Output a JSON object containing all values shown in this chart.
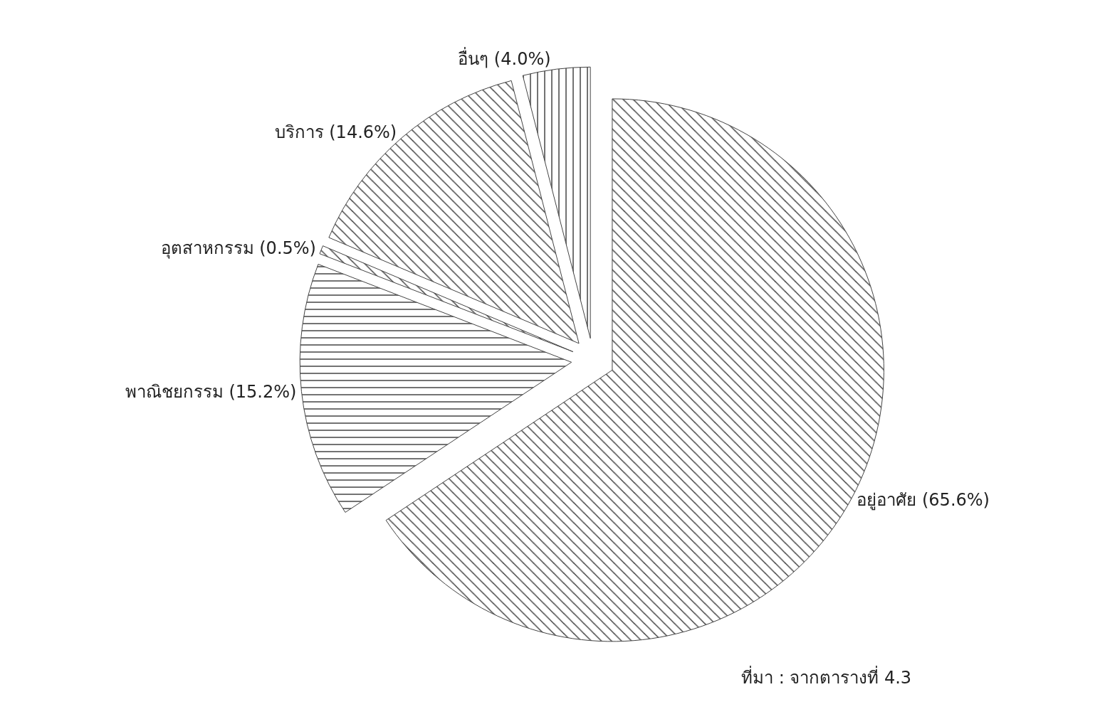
{
  "chart_data": {
    "type": "pie",
    "categories": [
      "อยู่อาศัย",
      "พาณิชยกรรม",
      "อุตสาหกรรม",
      "บริการ",
      "อื่นๆ"
    ],
    "values": [
      65.6,
      15.2,
      0.5,
      14.6,
      4.0
    ],
    "value_labels": [
      "(65.6%)",
      "(15.2%)",
      "(0.5%)",
      "(14.6%)",
      "(4.0%)"
    ],
    "colors": [
      "#444444",
      "#444444",
      "#444444",
      "#444444",
      "#444444"
    ],
    "annotations": [
      "ที่มา : จากตารางที่ 4.3"
    ]
  }
}
